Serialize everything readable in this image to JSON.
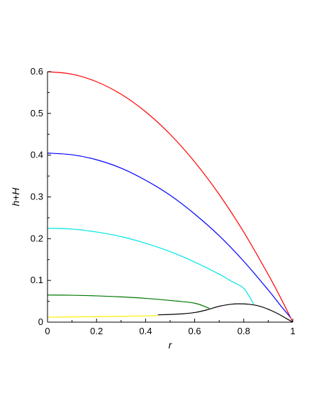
{
  "chart_data": {
    "type": "line",
    "xlabel": "r",
    "ylabel": "h+H",
    "xlim": [
      0,
      1
    ],
    "ylim": [
      0,
      0.6
    ],
    "x_ticks": [
      "0",
      "0.2",
      "0.4",
      "0.6",
      "0.8",
      "1"
    ],
    "y_ticks": [
      "0",
      "0.1",
      "0.2",
      "0.3",
      "0.4",
      "0.5",
      "0.6"
    ],
    "grid": false,
    "legend": "none",
    "series": [
      {
        "color": "#ff0000",
        "x": [
          0,
          0.1,
          0.2,
          0.3,
          0.4,
          0.5,
          0.6,
          0.7,
          0.8,
          0.9,
          0.95,
          1.0
        ],
        "y": [
          0.6,
          0.594,
          0.576,
          0.546,
          0.504,
          0.45,
          0.384,
          0.306,
          0.216,
          0.114,
          0.059,
          0.0
        ]
      },
      {
        "color": "#0000ff",
        "x": [
          0,
          0.1,
          0.2,
          0.3,
          0.4,
          0.5,
          0.6,
          0.7,
          0.8,
          0.9,
          0.95,
          0.99
        ],
        "y": [
          0.405,
          0.401,
          0.389,
          0.369,
          0.34,
          0.304,
          0.259,
          0.207,
          0.146,
          0.077,
          0.04,
          0.012
        ]
      },
      {
        "color": "#00e5e5",
        "x": [
          0,
          0.1,
          0.2,
          0.3,
          0.4,
          0.5,
          0.6,
          0.7,
          0.75,
          0.8,
          0.84
        ],
        "y": [
          0.225,
          0.223,
          0.216,
          0.205,
          0.189,
          0.169,
          0.144,
          0.115,
          0.098,
          0.081,
          0.044
        ]
      },
      {
        "color": "#007700",
        "x": [
          0,
          0.1,
          0.2,
          0.3,
          0.4,
          0.5,
          0.6,
          0.66
        ],
        "y": [
          0.065,
          0.0645,
          0.063,
          0.0605,
          0.057,
          0.052,
          0.0455,
          0.033
        ]
      },
      {
        "color": "#ffee00",
        "x": [
          0,
          0.1,
          0.2,
          0.3,
          0.4,
          0.45
        ],
        "y": [
          0.012,
          0.0125,
          0.0132,
          0.014,
          0.015,
          0.0155
        ]
      },
      {
        "color": "#000000",
        "x": [
          0.45,
          0.5,
          0.55,
          0.6,
          0.65,
          0.7,
          0.75,
          0.78,
          0.82,
          0.86,
          0.9,
          0.94,
          0.97,
          1.0
        ],
        "y": [
          0.0175,
          0.0185,
          0.02,
          0.023,
          0.0295,
          0.038,
          0.043,
          0.044,
          0.043,
          0.039,
          0.031,
          0.02,
          0.01,
          0.0
        ]
      }
    ]
  }
}
